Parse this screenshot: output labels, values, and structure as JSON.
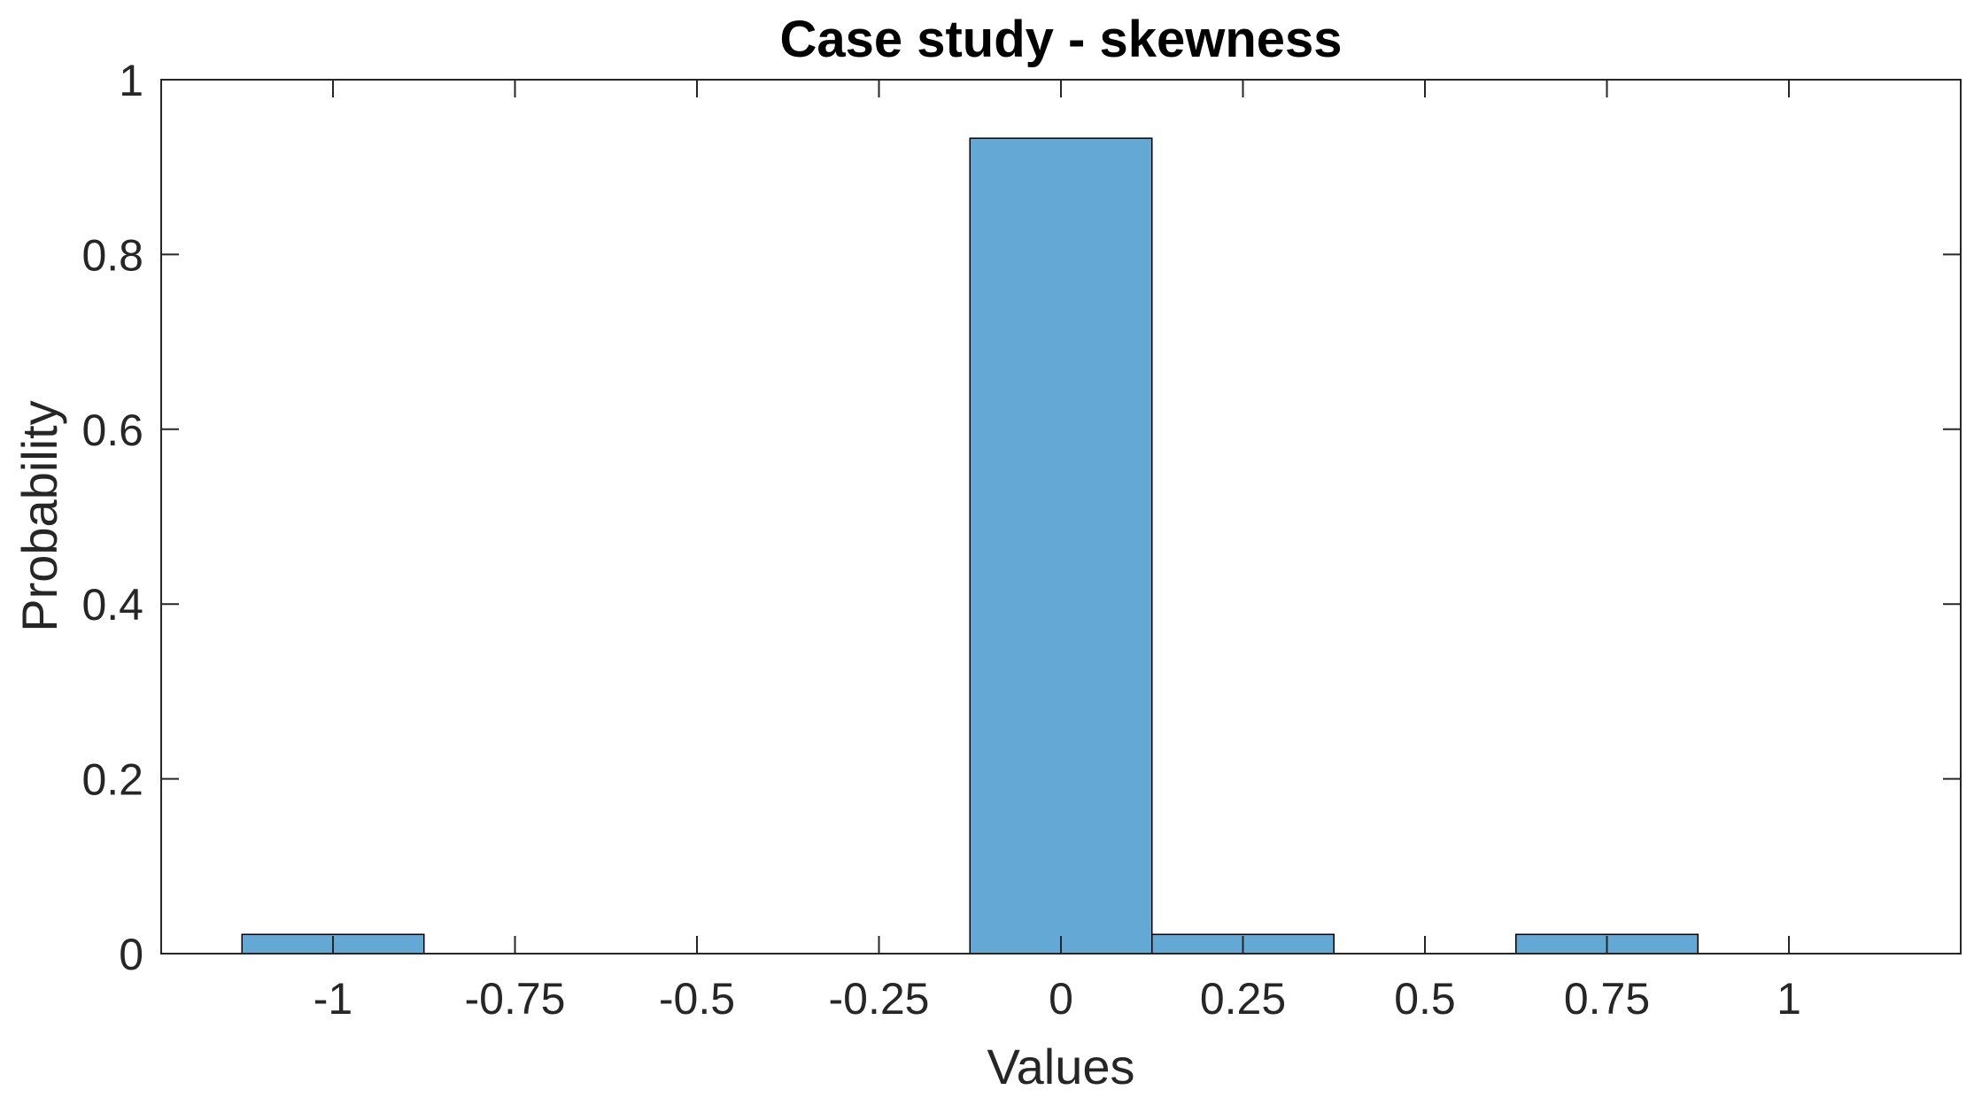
{
  "chart_data": {
    "type": "bar",
    "subtype": "histogram",
    "title": "Case study - skewness",
    "xlabel": "Values",
    "ylabel": "Probability",
    "xlim": [
      -1.236,
      1.236
    ],
    "ylim": [
      0,
      1
    ],
    "bin_width": 0.25,
    "bar_color": "#64a8d6",
    "edge_color": "#000000",
    "xticks": [
      -1,
      -0.75,
      -0.5,
      -0.25,
      0,
      0.25,
      0.5,
      0.75,
      1
    ],
    "xtick_labels": [
      "-1",
      "-0.75",
      "-0.5",
      "-0.25",
      "0",
      "0.25",
      "0.5",
      "0.75",
      "1"
    ],
    "yticks": [
      0,
      0.2,
      0.4,
      0.6,
      0.8,
      1
    ],
    "ytick_labels": [
      "0",
      "0.2",
      "0.4",
      "0.6",
      "0.8",
      "1"
    ],
    "bins": [
      {
        "center": -1,
        "value": 0.022
      },
      {
        "center": 0,
        "value": 0.933
      },
      {
        "center": 0.25,
        "value": 0.022
      },
      {
        "center": 0.75,
        "value": 0.022
      }
    ]
  }
}
